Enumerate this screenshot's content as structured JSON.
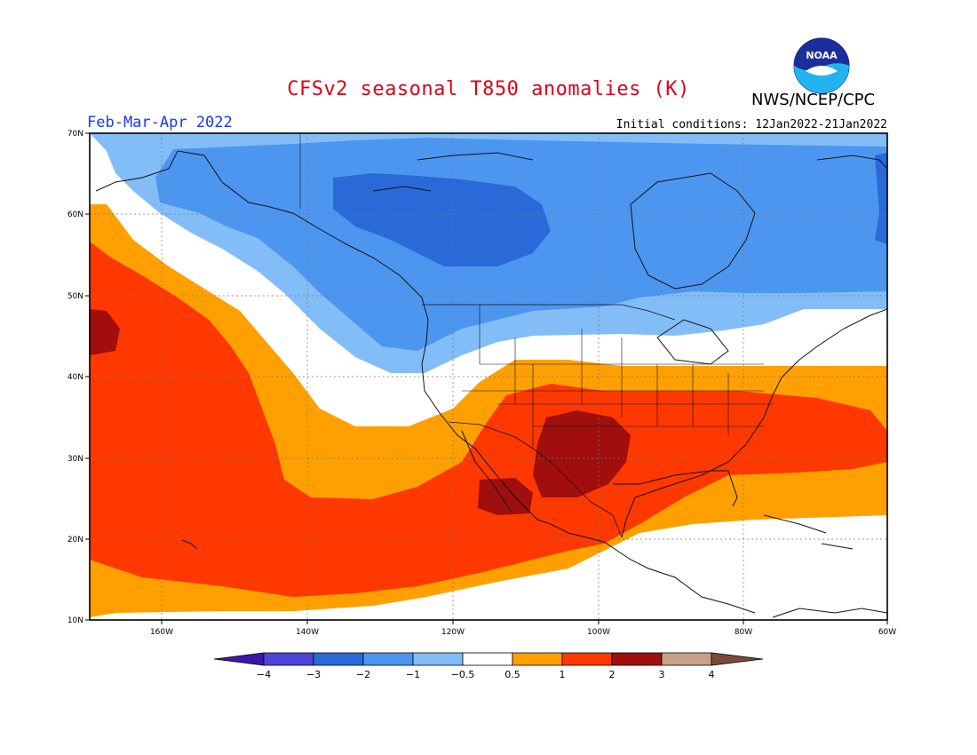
{
  "header": {
    "title": "CFSv2 seasonal T850 anomalies (K)",
    "organization": "NWS/NCEP/CPC",
    "period": "Feb-Mar-Apr 2022",
    "initial_conditions": "Initial conditions: 12Jan2022-21Jan2022"
  },
  "logo": {
    "icon": "noaa-logo-icon",
    "text": "NOAA"
  },
  "map": {
    "lon_ticks": [
      "160W",
      "140W",
      "120W",
      "100W",
      "80W",
      "60W"
    ],
    "lat_ticks": [
      "70N",
      "60N",
      "50N",
      "40N",
      "30N",
      "20N",
      "10N"
    ]
  },
  "colorbar": {
    "labels": [
      "−4",
      "−3",
      "−2",
      "−1",
      "−0.5",
      "0.5",
      "1",
      "2",
      "3",
      "4"
    ],
    "colors": [
      "#3d18a8",
      "#4d45d8",
      "#2a6ad8",
      "#4d96ef",
      "#82bdf7",
      "#ffffff",
      "#ffa000",
      "#ff3800",
      "#a00e0e",
      "#c8a08a",
      "#7a4a38"
    ]
  },
  "colors": {
    "title": "#e0001a",
    "period": "#1a35ff"
  }
}
